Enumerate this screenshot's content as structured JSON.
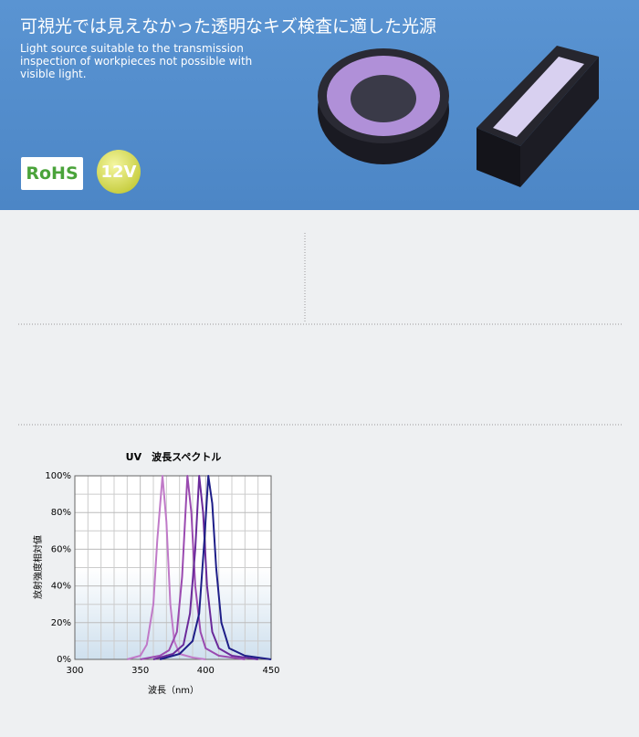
{
  "header": {
    "title": "可視光では見えなかった透明なキズ検査に適した光源",
    "description": [
      "Light source suitable to the transmission",
      "inspection of workpieces not possible with",
      "visible light."
    ],
    "badges": [
      "RoHS",
      "12V"
    ]
  },
  "chart_data": {
    "type": "line",
    "title": "UV　波長スペクトル",
    "x_label": "波長（nm）",
    "y_label": "放射強度相対値",
    "xlim": [
      300,
      450
    ],
    "ylim": [
      0,
      100
    ],
    "xticks": [
      300,
      350,
      400,
      450
    ],
    "yticks": [
      {
        "value": 0,
        "label": "0%"
      },
      {
        "value": 20,
        "label": "20%"
      },
      {
        "value": 40,
        "label": "40%"
      },
      {
        "value": 60,
        "label": "60%"
      },
      {
        "value": 80,
        "label": "80%"
      },
      {
        "value": 100,
        "label": "100%"
      }
    ],
    "x_minor_ticks": [
      310,
      320,
      330,
      340,
      360,
      370,
      380,
      390,
      410,
      420,
      430,
      440
    ],
    "y_minor_ticks": [
      10,
      30,
      50,
      70,
      90
    ],
    "grid": true,
    "series": [
      {
        "color": "#c07ac8",
        "x": [
          340,
          350,
          355,
          360,
          363,
          367,
          370,
          373,
          376,
          380,
          390,
          400
        ],
        "values": [
          0,
          2,
          8,
          30,
          65,
          100,
          75,
          30,
          10,
          3,
          1,
          0
        ]
      },
      {
        "color": "#9a4ab0",
        "x": [
          350,
          365,
          372,
          378,
          382,
          386,
          389,
          392,
          396,
          400,
          410,
          430
        ],
        "values": [
          0,
          2,
          5,
          15,
          45,
          100,
          80,
          40,
          15,
          6,
          2,
          0
        ]
      },
      {
        "color": "#6a2a9a",
        "x": [
          360,
          375,
          383,
          388,
          392,
          395,
          398,
          401,
          405,
          410,
          420,
          440
        ],
        "values": [
          0,
          3,
          8,
          25,
          60,
          100,
          80,
          40,
          15,
          6,
          2,
          0
        ]
      },
      {
        "color": "#1e1e88",
        "x": [
          365,
          380,
          390,
          395,
          399,
          402,
          405,
          408,
          412,
          418,
          430,
          450
        ],
        "values": [
          0,
          3,
          10,
          25,
          65,
          100,
          85,
          50,
          20,
          6,
          2,
          0
        ]
      }
    ]
  }
}
